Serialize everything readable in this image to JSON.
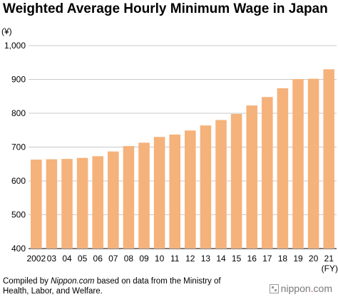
{
  "title": "Weighted Average Hourly Minimum Wage in Japan",
  "source": {
    "prefix": "Compiled by ",
    "site": "Nippon.com",
    "suffix": " based on data from the Ministry of Health, Labor, and Welfare."
  },
  "brand": {
    "name": "nippon",
    "dot": ".",
    "domain": "com",
    "icon": "nippon-logo-icon"
  },
  "chart_data": {
    "type": "bar",
    "title": "Weighted Average Hourly Minimum Wage in Japan",
    "ylabel": "(¥)",
    "xlabel": "(FY)",
    "ylim": [
      400,
      1000
    ],
    "yticks": [
      400,
      500,
      600,
      700,
      800,
      900,
      1000
    ],
    "ytick_labels": [
      "400",
      "500",
      "600",
      "700",
      "800",
      "900",
      "1,000"
    ],
    "categories": [
      "2002",
      "03",
      "04",
      "05",
      "06",
      "07",
      "08",
      "09",
      "10",
      "11",
      "12",
      "13",
      "14",
      "15",
      "16",
      "17",
      "18",
      "19",
      "20",
      "21"
    ],
    "values": [
      663,
      664,
      665,
      668,
      673,
      687,
      703,
      713,
      730,
      737,
      749,
      764,
      780,
      798,
      823,
      848,
      874,
      901,
      902,
      930
    ],
    "bar_color": "#f5b27b",
    "grid": true,
    "legend": "none"
  }
}
